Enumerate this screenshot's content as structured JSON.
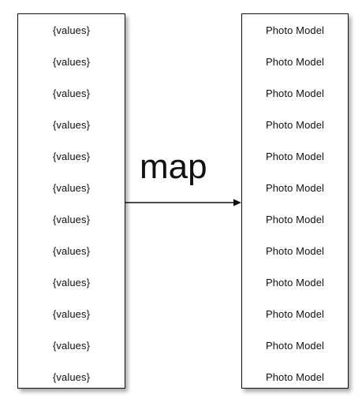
{
  "left_box": {
    "items": [
      "{values}",
      "{values}",
      "{values}",
      "{values}",
      "{values}",
      "{values}",
      "{values}",
      "{values}",
      "{values}",
      "{values}",
      "{values}",
      "{values}"
    ]
  },
  "right_box": {
    "items": [
      "Photo Model",
      "Photo Model",
      "Photo Model",
      "Photo Model",
      "Photo Model",
      "Photo Model",
      "Photo Model",
      "Photo Model",
      "Photo Model",
      "Photo Model",
      "Photo Model",
      "Photo Model"
    ]
  },
  "arrow": {
    "label": "map"
  }
}
